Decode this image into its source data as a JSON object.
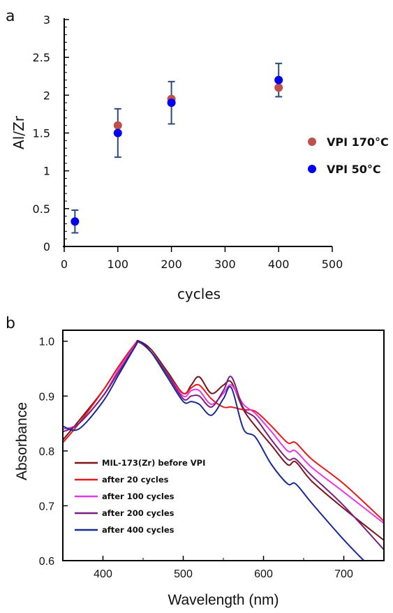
{
  "chart_data": [
    {
      "panel_label": "a",
      "type": "scatter",
      "xlabel": "cycles",
      "ylabel": "Al/Zr",
      "xlim": [
        0,
        500
      ],
      "ylim": [
        0,
        3
      ],
      "xticks": [
        0,
        100,
        200,
        300,
        400,
        500
      ],
      "yticks": [
        0,
        0.5,
        1,
        1.5,
        2,
        2.5,
        3
      ],
      "x_tick_labels": [
        "0",
        "100",
        "200",
        "300",
        "400",
        "500"
      ],
      "y_tick_labels": [
        "0",
        "0.5",
        "1",
        "1.5",
        "2",
        "2.5",
        "3"
      ],
      "grid": false,
      "legend_position": "right",
      "series": [
        {
          "name": "VPI 170°C",
          "color": "#c0504d",
          "points": [
            {
              "x": 100,
              "y": 1.6
            },
            {
              "x": 200,
              "y": 1.95
            },
            {
              "x": 400,
              "y": 2.1
            }
          ]
        },
        {
          "name": "VPI 50°C",
          "color": "#0000ee",
          "points": [
            {
              "x": 20,
              "y": 0.33,
              "err": 0.15
            },
            {
              "x": 100,
              "y": 1.5,
              "err": 0.32
            },
            {
              "x": 200,
              "y": 1.9,
              "err": 0.28
            },
            {
              "x": 400,
              "y": 2.2,
              "err": 0.22
            }
          ]
        }
      ]
    },
    {
      "panel_label": "b",
      "type": "line",
      "xlabel": "Wavelength (nm)",
      "ylabel": "Absorbance",
      "xlim": [
        350,
        750
      ],
      "ylim": [
        0.6,
        1.02
      ],
      "xticks": [
        400,
        500,
        600,
        700
      ],
      "yticks": [
        0.6,
        0.7,
        0.8,
        0.9,
        1.0
      ],
      "x_tick_labels": [
        "400",
        "500",
        "600",
        "700"
      ],
      "y_tick_labels": [
        "0.6",
        "0.7",
        "0.8",
        "0.9",
        "1.0"
      ],
      "grid": false,
      "legend_position": "bottom-left",
      "series": [
        {
          "name": "MIL-173(Zr) before VPI",
          "color": "#7b1416",
          "x": [
            350,
            370,
            400,
            420,
            440,
            445,
            460,
            480,
            500,
            510,
            520,
            535,
            550,
            560,
            575,
            590,
            610,
            630,
            640,
            660,
            700,
            750
          ],
          "y": [
            0.82,
            0.855,
            0.91,
            0.955,
            0.995,
            1.0,
            0.985,
            0.945,
            0.905,
            0.92,
            0.935,
            0.905,
            0.92,
            0.925,
            0.875,
            0.845,
            0.81,
            0.775,
            0.78,
            0.745,
            0.695,
            0.637
          ]
        },
        {
          "name": "after 20 cycles",
          "color": "#e8191c",
          "x": [
            350,
            370,
            400,
            420,
            440,
            445,
            460,
            480,
            500,
            510,
            520,
            535,
            550,
            560,
            575,
            590,
            610,
            630,
            640,
            660,
            700,
            750
          ],
          "y": [
            0.815,
            0.85,
            0.91,
            0.955,
            0.995,
            1.0,
            0.98,
            0.94,
            0.905,
            0.915,
            0.92,
            0.895,
            0.88,
            0.88,
            0.875,
            0.872,
            0.845,
            0.815,
            0.815,
            0.785,
            0.74,
            0.672
          ]
        },
        {
          "name": "after 100 cycles",
          "color": "#e438e8",
          "x": [
            350,
            370,
            400,
            420,
            440,
            445,
            460,
            480,
            500,
            510,
            520,
            535,
            550,
            560,
            575,
            590,
            610,
            630,
            640,
            660,
            700,
            750
          ],
          "y": [
            0.84,
            0.85,
            0.9,
            0.95,
            0.992,
            0.998,
            0.98,
            0.94,
            0.9,
            0.91,
            0.91,
            0.885,
            0.905,
            0.92,
            0.885,
            0.868,
            0.835,
            0.8,
            0.8,
            0.77,
            0.725,
            0.668
          ]
        },
        {
          "name": "after 200 cycles",
          "color": "#7a1e80",
          "x": [
            350,
            370,
            400,
            420,
            440,
            445,
            460,
            480,
            500,
            510,
            520,
            535,
            550,
            560,
            575,
            590,
            610,
            630,
            640,
            660,
            700,
            750
          ],
          "y": [
            0.835,
            0.85,
            0.9,
            0.945,
            0.99,
            0.998,
            0.98,
            0.94,
            0.895,
            0.9,
            0.9,
            0.88,
            0.91,
            0.935,
            0.878,
            0.86,
            0.82,
            0.785,
            0.785,
            0.755,
            0.7,
            0.62
          ]
        },
        {
          "name": "after 400 cycles",
          "color": "#182a92",
          "x": [
            350,
            370,
            400,
            420,
            440,
            445,
            460,
            480,
            500,
            510,
            520,
            535,
            550,
            560,
            575,
            590,
            610,
            630,
            640,
            660,
            700,
            725
          ],
          "y": [
            0.845,
            0.84,
            0.89,
            0.94,
            0.99,
            1.0,
            0.98,
            0.935,
            0.89,
            0.89,
            0.885,
            0.865,
            0.895,
            0.915,
            0.84,
            0.825,
            0.775,
            0.74,
            0.74,
            0.705,
            0.638,
            0.6
          ]
        }
      ]
    }
  ]
}
